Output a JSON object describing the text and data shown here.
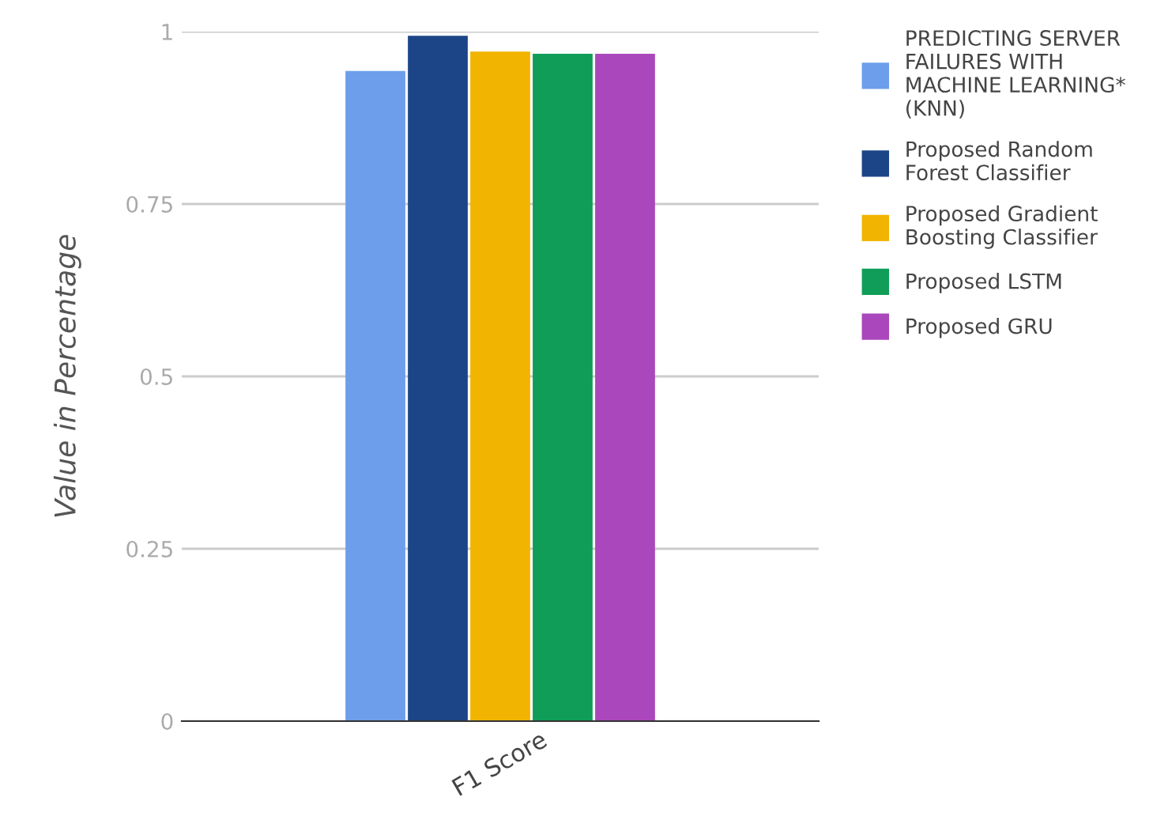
{
  "chart_data": {
    "type": "bar",
    "ylabel": "Value in Percentage",
    "categories": [
      "F1 Score"
    ],
    "series": [
      {
        "name": "PREDICTING SERVER FAILURES WITH MACHINE LEARNING* (KNN)",
        "color": "#6d9eeb",
        "values": [
          0.943
        ]
      },
      {
        "name": "Proposed Random Forest Classifier",
        "color": "#1c4587",
        "values": [
          0.994
        ]
      },
      {
        "name": "Proposed Gradient Boosting Classifier",
        "color": "#f1b400",
        "values": [
          0.971
        ]
      },
      {
        "name": "Proposed LSTM",
        "color": "#0f9d58",
        "values": [
          0.968
        ]
      },
      {
        "name": "Proposed GRU",
        "color": "#ab47bc",
        "values": [
          0.968
        ]
      }
    ],
    "ylim": [
      0,
      1
    ],
    "yticks": [
      0,
      0.25,
      0.5,
      0.75,
      1
    ],
    "grid": "y",
    "legend": "right"
  }
}
